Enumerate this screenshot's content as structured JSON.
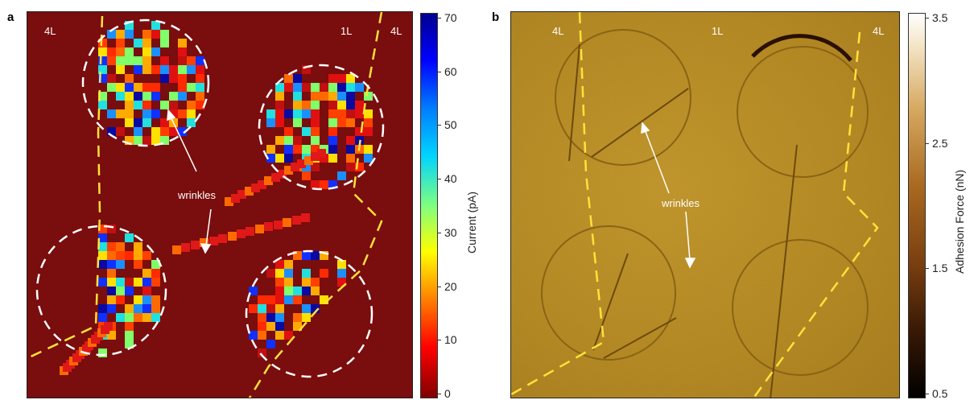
{
  "panel_a": {
    "letter": "a",
    "labels": {
      "left": "4L",
      "middle": "1L",
      "right": "4L"
    },
    "annotation": "wrinkles",
    "colorbar": {
      "title": "Current (pA)",
      "ticks": [
        "70",
        "60",
        "50",
        "40",
        "30",
        "20",
        "10",
        "0"
      ],
      "range": [
        0,
        70
      ]
    }
  },
  "panel_b": {
    "letter": "b",
    "labels": {
      "left": "4L",
      "middle": "1L",
      "right": "4L"
    },
    "annotation": "wrinkles",
    "colorbar": {
      "title": "Adhesion Force (nN)",
      "ticks": [
        "3.5",
        "2.5",
        "1.5",
        "0.5"
      ],
      "range": [
        0.5,
        3.5
      ]
    }
  },
  "colors": {
    "map_a_background": "#7a0d0d",
    "boundary_dash": "#ffe23a",
    "circle_dash": "#ffffff"
  }
}
